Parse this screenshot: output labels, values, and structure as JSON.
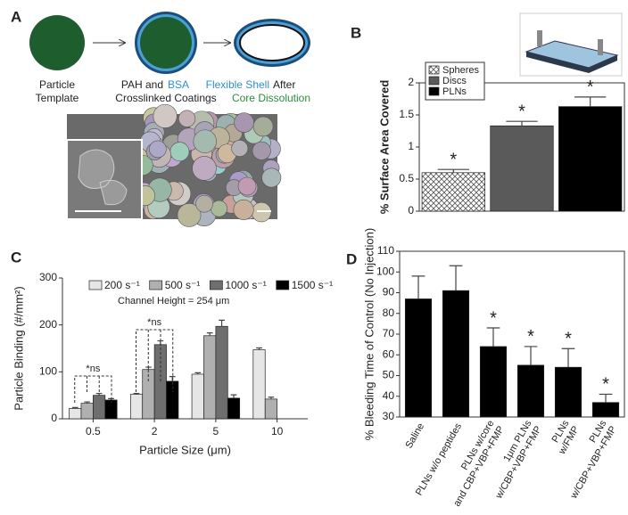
{
  "panel_labels": [
    "A",
    "B",
    "C",
    "D"
  ],
  "diagram": {
    "template_label": [
      "Particle",
      "Template"
    ],
    "coating_label": [
      "PAH and",
      "BSA",
      "Crosslinked Coatings"
    ],
    "shell_label": [
      "Flexible Shell",
      "After",
      "Core Dissolution"
    ]
  },
  "chart_data": [
    {
      "type": "bar",
      "ylabel": "% Surface Area Covered",
      "categories": [
        "Spheres",
        "Discs",
        "PLNs"
      ],
      "values": [
        0.6,
        1.33,
        1.63
      ],
      "errors": [
        0.05,
        0.07,
        0.15
      ],
      "colors": [
        "#ffffff",
        "#5a5a5a",
        "#000000"
      ],
      "hatch": [
        true,
        false,
        false
      ],
      "significance": [
        "*",
        "*",
        "*"
      ],
      "ylim": [
        0,
        2
      ],
      "yticks": [
        0,
        0.5,
        1,
        1.5,
        2
      ],
      "legend": "upper left"
    },
    {
      "type": "bar",
      "xlabel": "Particle Size (μm)",
      "ylabel": "Particle Binding (#/mm²)",
      "categories": [
        "0.5",
        "2",
        "5",
        "10"
      ],
      "series": [
        {
          "name": "200 s⁻¹",
          "color": "#e6e6e6",
          "values": [
            22,
            52,
            95,
            147
          ],
          "errors": [
            2,
            2,
            3,
            4
          ]
        },
        {
          "name": "500 s⁻¹",
          "color": "#b0b0b0",
          "values": [
            33,
            105,
            177,
            42
          ],
          "errors": [
            3,
            5,
            6,
            4
          ]
        },
        {
          "name": "1000 s⁻¹",
          "color": "#6e6e6e",
          "values": [
            50,
            158,
            197,
            null
          ],
          "errors": [
            4,
            8,
            13,
            null
          ]
        },
        {
          "name": "1500 s⁻¹",
          "color": "#000000",
          "values": [
            40,
            80,
            44,
            null
          ],
          "errors": [
            3,
            10,
            7,
            null
          ]
        }
      ],
      "note": "Channel Height = 254 μm",
      "annotations": [
        "*ns",
        "*ns"
      ],
      "ylim": [
        0,
        300
      ],
      "yticks": [
        0,
        100,
        200,
        300
      ],
      "legend": "top"
    },
    {
      "type": "bar",
      "ylabel": "% Bleeding Time of Control (No Injection)",
      "categories": [
        [
          "Saline"
        ],
        [
          "PLNs w/o peptides"
        ],
        [
          "PLNs w/core",
          "and CBP+VBP+FMP"
        ],
        [
          "1μm PLNs",
          "w/CBP+VBP+FMP"
        ],
        [
          "PLNs",
          "w/FMP"
        ],
        [
          "PLNs",
          "w/CBP+VBP+FMP"
        ]
      ],
      "values": [
        87,
        91,
        64,
        55,
        54,
        37
      ],
      "errors": [
        11,
        12,
        9,
        9,
        9,
        4
      ],
      "color": "#000000",
      "significance": [
        null,
        null,
        "*",
        "*",
        "*",
        "*"
      ],
      "ylim": [
        30,
        110
      ],
      "yticks": [
        30,
        40,
        50,
        60,
        70,
        80,
        90,
        100,
        110
      ]
    }
  ]
}
